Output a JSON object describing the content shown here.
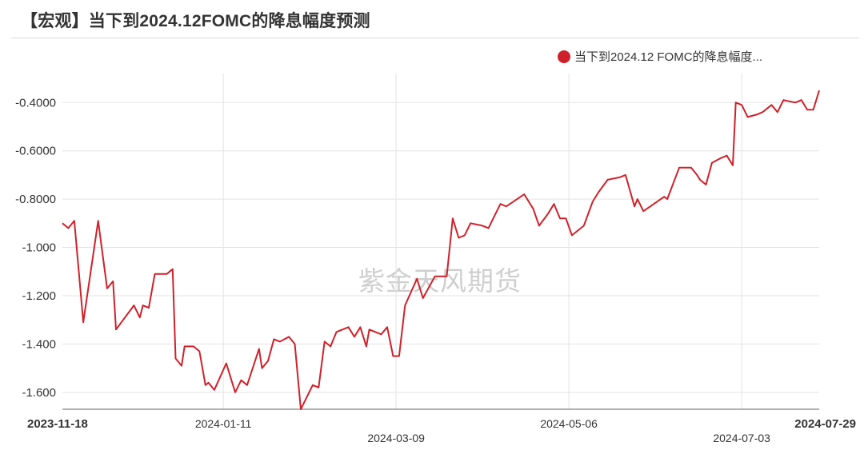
{
  "title": "【宏观】当下到2024.12FOMC的降息幅度预测",
  "watermark": "紫金天风期货",
  "legend": {
    "label": "当下到2024.12 FOMC的降息幅度...",
    "color": "#d0202a"
  },
  "chart_data": {
    "type": "line",
    "title": "【宏观】当下到2024.12FOMC的降息幅度预测",
    "xlabel": "",
    "ylabel": "",
    "ylim": [
      -1.67,
      -0.28
    ],
    "y_ticks": [
      -0.4,
      -0.6,
      -0.8,
      -1.0,
      -1.2,
      -1.4,
      -1.6
    ],
    "y_tick_labels": [
      "-0.4000",
      "-0.6000",
      "-0.8000",
      "-1.000",
      "-1.200",
      "-1.400",
      "-1.600"
    ],
    "x_range": [
      "2023-11-18",
      "2024-07-29"
    ],
    "x_ticks": [
      {
        "date": "2023-11-18",
        "label": "2023-11-18",
        "bold": true,
        "row": 0
      },
      {
        "date": "2024-01-11",
        "label": "2024-01-11",
        "bold": false,
        "row": 0
      },
      {
        "date": "2024-03-09",
        "label": "2024-03-09",
        "bold": false,
        "row": 1
      },
      {
        "date": "2024-05-06",
        "label": "2024-05-06",
        "bold": false,
        "row": 0
      },
      {
        "date": "2024-07-03",
        "label": "2024-07-03",
        "bold": false,
        "row": 1
      },
      {
        "date": "2024-07-29",
        "label": "2024-07-29",
        "bold": true,
        "row": 0
      }
    ],
    "grid": true,
    "legend_position": "top-right",
    "series": [
      {
        "name": "当下到2024.12 FOMC的降息幅度...",
        "color": "#d0202a",
        "points": [
          [
            "2023-11-18",
            -0.9
          ],
          [
            "2023-11-20",
            -0.92
          ],
          [
            "2023-11-22",
            -0.89
          ],
          [
            "2023-11-25",
            -1.31
          ],
          [
            "2023-11-30",
            -0.89
          ],
          [
            "2023-12-03",
            -1.17
          ],
          [
            "2023-12-05",
            -1.14
          ],
          [
            "2023-12-06",
            -1.34
          ],
          [
            "2023-12-12",
            -1.24
          ],
          [
            "2023-12-14",
            -1.29
          ],
          [
            "2023-12-15",
            -1.24
          ],
          [
            "2023-12-17",
            -1.25
          ],
          [
            "2023-12-19",
            -1.11
          ],
          [
            "2023-12-23",
            -1.11
          ],
          [
            "2023-12-25",
            -1.09
          ],
          [
            "2023-12-26",
            -1.46
          ],
          [
            "2023-12-28",
            -1.49
          ],
          [
            "2023-12-29",
            -1.41
          ],
          [
            "2024-01-01",
            -1.41
          ],
          [
            "2024-01-03",
            -1.43
          ],
          [
            "2024-01-05",
            -1.57
          ],
          [
            "2024-01-06",
            -1.56
          ],
          [
            "2024-01-08",
            -1.59
          ],
          [
            "2024-01-12",
            -1.48
          ],
          [
            "2024-01-15",
            -1.6
          ],
          [
            "2024-01-17",
            -1.55
          ],
          [
            "2024-01-19",
            -1.57
          ],
          [
            "2024-01-23",
            -1.42
          ],
          [
            "2024-01-24",
            -1.5
          ],
          [
            "2024-01-26",
            -1.47
          ],
          [
            "2024-01-28",
            -1.38
          ],
          [
            "2024-01-30",
            -1.39
          ],
          [
            "2024-02-02",
            -1.37
          ],
          [
            "2024-02-04",
            -1.4
          ],
          [
            "2024-02-06",
            -1.67
          ],
          [
            "2024-02-10",
            -1.57
          ],
          [
            "2024-02-12",
            -1.58
          ],
          [
            "2024-02-14",
            -1.39
          ],
          [
            "2024-02-16",
            -1.41
          ],
          [
            "2024-02-18",
            -1.35
          ],
          [
            "2024-02-22",
            -1.33
          ],
          [
            "2024-02-24",
            -1.37
          ],
          [
            "2024-02-26",
            -1.33
          ],
          [
            "2024-02-28",
            -1.41
          ],
          [
            "2024-02-29",
            -1.34
          ],
          [
            "2024-03-04",
            -1.36
          ],
          [
            "2024-03-06",
            -1.33
          ],
          [
            "2024-03-08",
            -1.45
          ],
          [
            "2024-03-10",
            -1.45
          ],
          [
            "2024-03-12",
            -1.24
          ],
          [
            "2024-03-16",
            -1.13
          ],
          [
            "2024-03-18",
            -1.21
          ],
          [
            "2024-03-22",
            -1.12
          ],
          [
            "2024-03-26",
            -1.12
          ],
          [
            "2024-03-28",
            -0.88
          ],
          [
            "2024-03-30",
            -0.96
          ],
          [
            "2024-04-01",
            -0.95
          ],
          [
            "2024-04-03",
            -0.9
          ],
          [
            "2024-04-07",
            -0.91
          ],
          [
            "2024-04-09",
            -0.92
          ],
          [
            "2024-04-11",
            -0.87
          ],
          [
            "2024-04-13",
            -0.82
          ],
          [
            "2024-04-15",
            -0.83
          ],
          [
            "2024-04-21",
            -0.78
          ],
          [
            "2024-04-24",
            -0.84
          ],
          [
            "2024-04-26",
            -0.91
          ],
          [
            "2024-04-29",
            -0.86
          ],
          [
            "2024-05-01",
            -0.82
          ],
          [
            "2024-05-03",
            -0.88
          ],
          [
            "2024-05-05",
            -0.88
          ],
          [
            "2024-05-07",
            -0.95
          ],
          [
            "2024-05-11",
            -0.91
          ],
          [
            "2024-05-14",
            -0.81
          ],
          [
            "2024-05-16",
            -0.77
          ],
          [
            "2024-05-19",
            -0.72
          ],
          [
            "2024-05-23",
            -0.71
          ],
          [
            "2024-05-25",
            -0.7
          ],
          [
            "2024-05-28",
            -0.83
          ],
          [
            "2024-05-29",
            -0.8
          ],
          [
            "2024-05-31",
            -0.85
          ],
          [
            "2024-06-07",
            -0.79
          ],
          [
            "2024-06-08",
            -0.8
          ],
          [
            "2024-06-12",
            -0.67
          ],
          [
            "2024-06-16",
            -0.67
          ],
          [
            "2024-06-18",
            -0.7
          ],
          [
            "2024-06-19",
            -0.72
          ],
          [
            "2024-06-21",
            -0.74
          ],
          [
            "2024-06-23",
            -0.65
          ],
          [
            "2024-06-26",
            -0.63
          ],
          [
            "2024-06-28",
            -0.62
          ],
          [
            "2024-06-30",
            -0.66
          ],
          [
            "2024-07-01",
            -0.4
          ],
          [
            "2024-07-03",
            -0.41
          ],
          [
            "2024-07-05",
            -0.46
          ],
          [
            "2024-07-08",
            -0.45
          ],
          [
            "2024-07-10",
            -0.44
          ],
          [
            "2024-07-12",
            -0.42
          ],
          [
            "2024-07-13",
            -0.41
          ],
          [
            "2024-07-15",
            -0.44
          ],
          [
            "2024-07-17",
            -0.39
          ],
          [
            "2024-07-21",
            -0.4
          ],
          [
            "2024-07-23",
            -0.39
          ],
          [
            "2024-07-25",
            -0.43
          ],
          [
            "2024-07-27",
            -0.43
          ],
          [
            "2024-07-29",
            -0.35
          ]
        ]
      }
    ]
  }
}
